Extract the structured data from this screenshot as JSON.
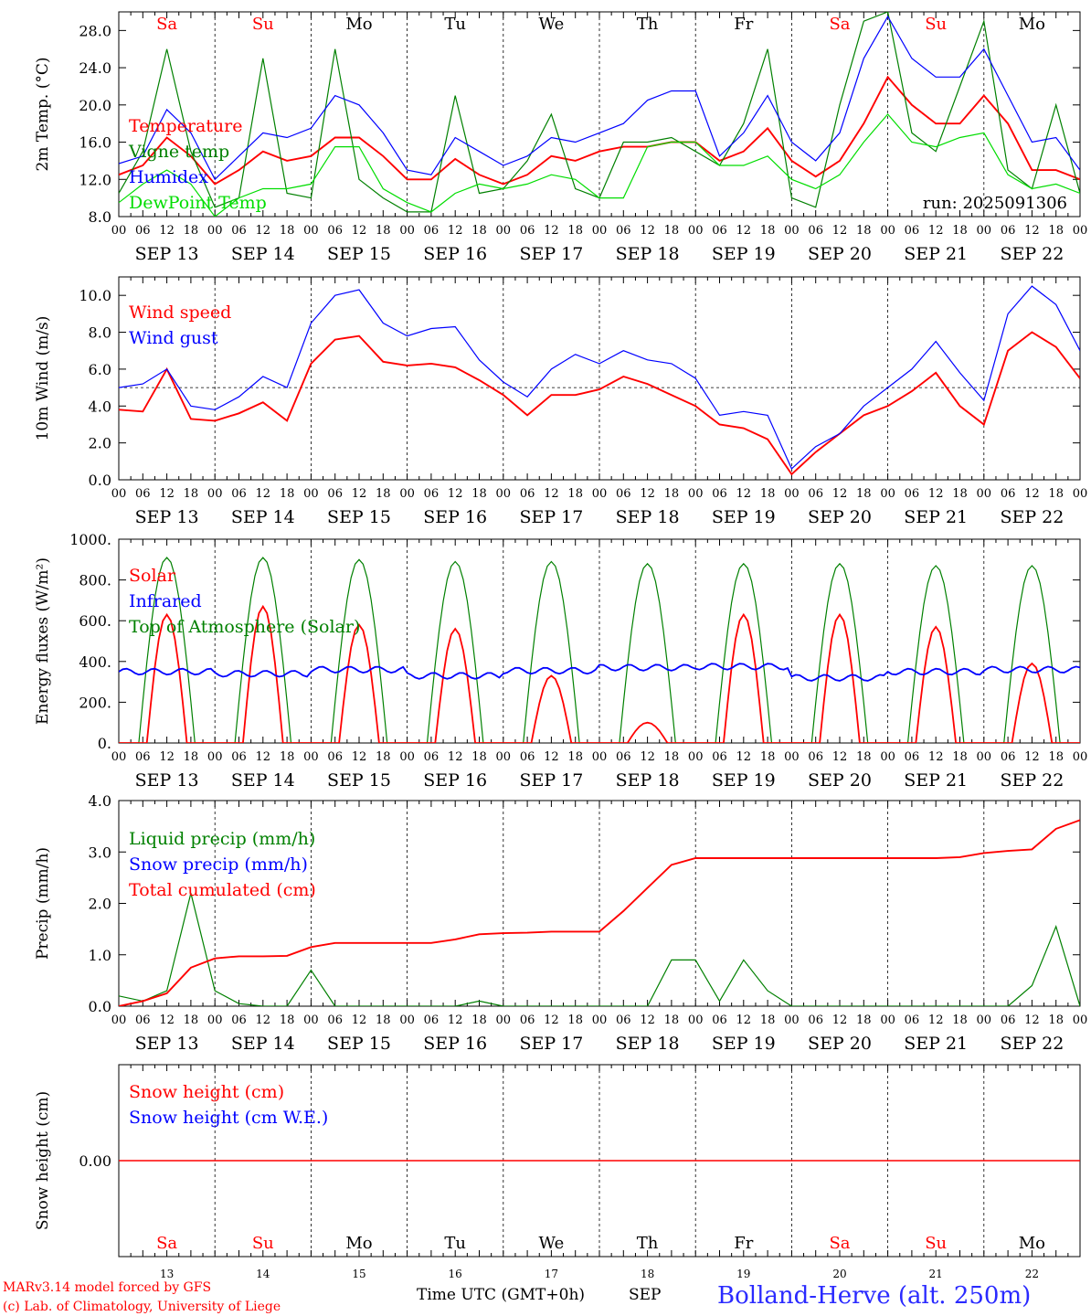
{
  "day_labels": [
    "Sa",
    "Su",
    "Mo",
    "Tu",
    "We",
    "Th",
    "Fr",
    "Sa",
    "Su",
    "Mo"
  ],
  "weekend_flags": [
    true,
    true,
    false,
    false,
    false,
    false,
    false,
    true,
    true,
    false
  ],
  "date_labels": [
    "SEP 13",
    "SEP 14",
    "SEP 15",
    "SEP 16",
    "SEP 17",
    "SEP 18",
    "SEP 19",
    "SEP 20",
    "SEP 21",
    "SEP 22"
  ],
  "hour_labels": [
    "00",
    "06",
    "12",
    "18"
  ],
  "day_numbers": [
    "13",
    "14",
    "15",
    "16",
    "17",
    "18",
    "19",
    "20",
    "21",
    "22"
  ],
  "footer": {
    "credit_line1": "MARv3.14 model forced by GFS",
    "credit_line2": "(c) Lab. of Climatology, University of Liege",
    "time_axis": "Time UTC (GMT+0h)",
    "month": "SEP",
    "station": "Bolland-Herve (alt. 250m)"
  },
  "colors": {
    "red": "#ff0000",
    "green": "#008000",
    "blue": "#0000ff",
    "lightgreen": "#00dd00",
    "weekend": "#ff0000"
  },
  "chart_data": [
    {
      "type": "line",
      "ylabel": "2m Temp. (°C)",
      "ylim": [
        8,
        30
      ],
      "yticks": [
        8,
        12,
        16,
        20,
        24,
        28
      ],
      "tick_labels": [
        "8.0",
        "12.0",
        "16.0",
        "20.0",
        "24.0",
        "28.0"
      ],
      "run_label": "run: 2025091306",
      "x_hours": [
        0,
        6,
        12,
        18,
        24,
        30,
        36,
        42,
        48,
        54,
        60,
        66,
        72,
        78,
        84,
        90,
        96,
        102,
        108,
        114,
        120,
        126,
        132,
        138,
        144,
        150,
        156,
        162,
        168,
        174,
        180,
        186,
        192,
        198,
        204,
        210,
        216,
        222,
        228,
        234,
        240
      ],
      "series": [
        {
          "name": "Temperature",
          "color": "#ff0000",
          "values": [
            12.5,
            13.5,
            16.5,
            14.5,
            11.5,
            13,
            15,
            14,
            14.5,
            16.5,
            16.5,
            14.5,
            12,
            12,
            14.2,
            12.5,
            11.5,
            12.5,
            14.5,
            14,
            15,
            15.5,
            15.5,
            16,
            16,
            14,
            15,
            17.5,
            14,
            12.3,
            14,
            18,
            23,
            20,
            18,
            18,
            21,
            18,
            13,
            13,
            12
          ]
        },
        {
          "name": "Vigne temp",
          "color": "#008000",
          "values": [
            10.5,
            15,
            26,
            15,
            9,
            10,
            25,
            10.5,
            10,
            26,
            12,
            10,
            8.5,
            8.5,
            21,
            10.5,
            11,
            14,
            19,
            11,
            10,
            16,
            16,
            16.5,
            15,
            13.5,
            18,
            26,
            10,
            9,
            20,
            29,
            30,
            17,
            15,
            22,
            29,
            13,
            11,
            20,
            10.5
          ]
        },
        {
          "name": "Humidex",
          "color": "#0000ff",
          "values": [
            13.7,
            14.5,
            19.5,
            17,
            12,
            14.5,
            17,
            16.5,
            17.5,
            21,
            20,
            17,
            13,
            12.5,
            16.5,
            15,
            13.5,
            14.5,
            16.5,
            16,
            17,
            18,
            20.5,
            21.5,
            21.5,
            14.5,
            17,
            21,
            16,
            14,
            17,
            25,
            29.5,
            25,
            23,
            23,
            26,
            21,
            16,
            16.5,
            13
          ]
        },
        {
          "name": "DewPoint Temp",
          "color": "#00dd00",
          "values": [
            9.5,
            11.5,
            13,
            11.5,
            8,
            10,
            11,
            11,
            11.5,
            15.5,
            15.5,
            11,
            9.5,
            8.5,
            10.5,
            11.5,
            11,
            11.5,
            12.5,
            12,
            10,
            10,
            15.5,
            16,
            16,
            13.5,
            13.5,
            14.5,
            12,
            11,
            12.5,
            16,
            19,
            16,
            15.5,
            16.5,
            17,
            12.5,
            11,
            11.5,
            10.5
          ]
        }
      ]
    },
    {
      "type": "line",
      "ylabel": "10m Wind (m/s)",
      "ylim": [
        0,
        11
      ],
      "yticks": [
        0,
        2,
        4,
        6,
        8,
        10
      ],
      "tick_labels": [
        "0.0",
        "2.0",
        "4.0",
        "6.0",
        "8.0",
        "10.0"
      ],
      "reference_line": 5,
      "x_hours": [
        0,
        6,
        12,
        18,
        24,
        30,
        36,
        42,
        48,
        54,
        60,
        66,
        72,
        78,
        84,
        90,
        96,
        102,
        108,
        114,
        120,
        126,
        132,
        138,
        144,
        150,
        156,
        162,
        168,
        174,
        180,
        186,
        192,
        198,
        204,
        210,
        216,
        222,
        228,
        234,
        240
      ],
      "series": [
        {
          "name": "Wind speed",
          "color": "#ff0000",
          "values": [
            3.8,
            3.7,
            6,
            3.3,
            3.2,
            3.6,
            4.2,
            3.2,
            6.3,
            7.6,
            7.8,
            6.4,
            6.2,
            6.3,
            6.1,
            5.4,
            4.6,
            3.5,
            4.6,
            4.6,
            4.9,
            5.6,
            5.2,
            4.6,
            4,
            3,
            2.8,
            2.2,
            0.3,
            1.5,
            2.5,
            3.5,
            4,
            4.8,
            5.8,
            4,
            3,
            7,
            8,
            7.2,
            5.5
          ]
        },
        {
          "name": "Wind gust",
          "color": "#0000ff",
          "values": [
            5,
            5.2,
            6,
            4,
            3.8,
            4.5,
            5.6,
            5,
            8.5,
            10,
            10.3,
            8.5,
            7.8,
            8.2,
            8.3,
            6.5,
            5.3,
            4.5,
            6,
            6.8,
            6.3,
            7,
            6.5,
            6.3,
            5.5,
            3.5,
            3.7,
            3.5,
            0.6,
            1.8,
            2.5,
            4,
            5,
            6,
            7.5,
            5.8,
            4.3,
            9,
            10.5,
            9.5,
            7
          ]
        }
      ]
    },
    {
      "type": "line",
      "ylabel": "Energy fluxes (W/m²)",
      "ylim": [
        0,
        1000
      ],
      "yticks": [
        0,
        200,
        400,
        600,
        800,
        1000
      ],
      "tick_labels": [
        "0.",
        "200.",
        "400.",
        "600.",
        "800.",
        "1000."
      ],
      "daily": {
        "solar_peak": [
          630,
          670,
          580,
          560,
          330,
          100,
          630,
          630,
          570,
          390
        ],
        "toa_peak": [
          910,
          910,
          900,
          890,
          890,
          880,
          880,
          880,
          870,
          870
        ],
        "infrared_level": [
          350,
          340,
          360,
          330,
          355,
          370,
          375,
          320,
          350,
          360
        ]
      },
      "series": [
        {
          "name": "Solar",
          "color": "#ff0000"
        },
        {
          "name": "Infrared",
          "color": "#0000ff"
        },
        {
          "name": "Top of Atmosphere (Solar)",
          "color": "#008000"
        }
      ]
    },
    {
      "type": "line",
      "ylabel": "Precip (mm/h)",
      "ylim": [
        0,
        4
      ],
      "yticks": [
        0,
        1,
        2,
        3,
        4
      ],
      "tick_labels": [
        "0.0",
        "1.0",
        "2.0",
        "3.0",
        "4.0"
      ],
      "x_hours": [
        0,
        6,
        12,
        18,
        24,
        30,
        36,
        42,
        48,
        54,
        60,
        66,
        72,
        78,
        84,
        90,
        96,
        102,
        108,
        114,
        120,
        126,
        132,
        138,
        144,
        150,
        156,
        162,
        168,
        174,
        180,
        186,
        192,
        198,
        204,
        210,
        216,
        222,
        228,
        234,
        240
      ],
      "series": [
        {
          "name": "Liquid precip (mm/h)",
          "color": "#008000",
          "values": [
            0.2,
            0.1,
            0.3,
            2.2,
            0.3,
            0.05,
            0,
            0,
            0.7,
            0,
            0,
            0,
            0,
            0,
            0,
            0.1,
            0,
            0,
            0,
            0,
            0,
            0,
            0,
            0.9,
            0.9,
            0.1,
            0.9,
            0.3,
            0,
            0,
            0,
            0,
            0,
            0,
            0,
            0,
            0,
            0,
            0.4,
            1.55,
            0
          ]
        },
        {
          "name": "Snow precip (mm/h)",
          "color": "#0000ff",
          "values": []
        },
        {
          "name": "Total cumulated (cm)",
          "color": "#ff0000",
          "values": [
            0,
            0.1,
            0.25,
            0.75,
            0.93,
            0.97,
            0.97,
            0.98,
            1.15,
            1.23,
            1.23,
            1.23,
            1.23,
            1.23,
            1.3,
            1.4,
            1.42,
            1.43,
            1.45,
            1.45,
            1.45,
            1.85,
            2.3,
            2.75,
            2.88,
            2.88,
            2.88,
            2.88,
            2.88,
            2.88,
            2.88,
            2.88,
            2.88,
            2.88,
            2.88,
            2.9,
            2.98,
            3.02,
            3.05,
            3.45,
            3.62
          ]
        }
      ]
    },
    {
      "type": "line",
      "ylabel": "Snow height (cm)",
      "ylim": [
        -1,
        1
      ],
      "yticks": [
        0
      ],
      "tick_labels": [
        "0.00"
      ],
      "series": [
        {
          "name": "Snow height (cm)",
          "color": "#ff0000",
          "values": [
            0,
            0
          ]
        },
        {
          "name": "Snow height (cm W.E.)",
          "color": "#0000ff",
          "values": []
        }
      ]
    }
  ]
}
